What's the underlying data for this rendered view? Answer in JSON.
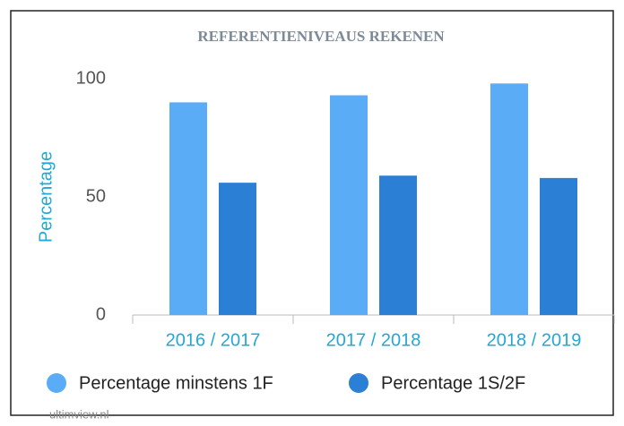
{
  "chart_data": {
    "type": "bar",
    "title": "REFERENTIENIVEAUS REKENEN",
    "y_label": "Percentage",
    "categories": [
      "2016 / 2017",
      "2017 / 2018",
      "2018 / 2019"
    ],
    "series": [
      {
        "name": "Percentage minstens 1F",
        "color": "#5aacf7",
        "values": [
          90,
          93,
          98
        ]
      },
      {
        "name": "Percentage 1S/2F",
        "color": "#2b7fd4",
        "values": [
          56,
          59,
          58
        ]
      }
    ],
    "ylim": [
      0,
      100
    ],
    "yticks": [
      0,
      50,
      100
    ],
    "grid": false,
    "source": "ultimview.nl"
  }
}
